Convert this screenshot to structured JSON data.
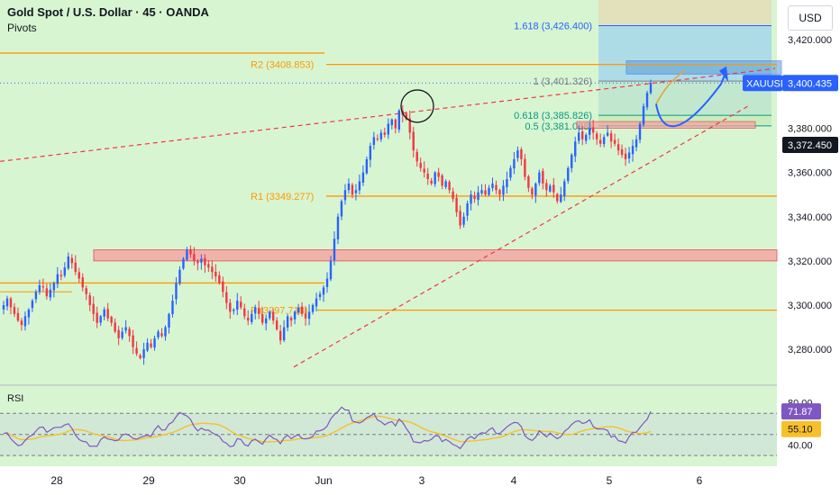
{
  "header": {
    "title": "Gold Spot / U.S. Dollar · 45 · OANDA",
    "indicator": "Pivots",
    "currency": "USD"
  },
  "colors": {
    "background": "#d8f5d1",
    "bull": "#2962ff",
    "bear": "#f23645",
    "pivot": "#ff9800",
    "fib_blue": "#2962ff",
    "fib_green": "#089981",
    "rsi_line": "#7e57c2",
    "rsi_ma": "#f7c02b",
    "zone_red": "#f7a3a3"
  },
  "chart_data": {
    "type": "candlestick",
    "symbol": "XAUUSD",
    "x_ticks": [
      "28",
      "29",
      "30",
      "Jun",
      "3",
      "4",
      "5",
      "6"
    ],
    "y_ticks": [
      "3,280.000",
      "3,300.000",
      "3,320.000",
      "3,340.000",
      "3,360.000",
      "3,380.000",
      "3,400.000",
      "3,420.000"
    ],
    "ylim": [
      3265,
      3438
    ],
    "price_labels": {
      "symbol": "XAUUSD",
      "last": "3,400.435",
      "marker": "3,372.450"
    },
    "pivot_levels": [
      {
        "label": "R2 (3408.853)",
        "value": 3408.853
      },
      {
        "label": "R1 (3349.277)",
        "value": 3349.277
      },
      {
        "label": "P (3297.718)",
        "value": 3297.718
      }
    ],
    "fib_levels": [
      {
        "label": "1.618 (3,426.400)",
        "value": 3426.4
      },
      {
        "label": "1 (3,401.326)",
        "value": 3401.326
      },
      {
        "label": "0.618 (3,385.826)",
        "value": 3385.826
      },
      {
        "label": "0.5 (3,381.038)",
        "value": 3381.038
      }
    ],
    "candles_close": [
      3300,
      3303,
      3299,
      3296,
      3293,
      3291,
      3295,
      3298,
      3302,
      3306,
      3309,
      3308,
      3304,
      3307,
      3310,
      3314,
      3313,
      3317,
      3322,
      3319,
      3315,
      3312,
      3308,
      3305,
      3300,
      3296,
      3292,
      3295,
      3298,
      3294,
      3292,
      3288,
      3285,
      3288,
      3290,
      3286,
      3281,
      3278,
      3276,
      3280,
      3283,
      3281,
      3285,
      3288,
      3286,
      3290,
      3296,
      3302,
      3310,
      3316,
      3321,
      3325,
      3323,
      3320,
      3319,
      3321,
      3318,
      3317,
      3315,
      3313,
      3310,
      3306,
      3301,
      3297,
      3298,
      3302,
      3299,
      3295,
      3293,
      3296,
      3299,
      3296,
      3292,
      3294,
      3297,
      3293,
      3289,
      3284,
      3290,
      3295,
      3293,
      3297,
      3299,
      3296,
      3294,
      3297,
      3300,
      3303,
      3305,
      3308,
      3312,
      3320,
      3330,
      3340,
      3347,
      3352,
      3355,
      3350,
      3352,
      3356,
      3360,
      3366,
      3372,
      3376,
      3375,
      3378,
      3377,
      3382,
      3384,
      3380,
      3388,
      3386,
      3384,
      3378,
      3370,
      3365,
      3362,
      3360,
      3357,
      3355,
      3360,
      3358,
      3354,
      3356,
      3352,
      3348,
      3342,
      3336,
      3340,
      3346,
      3350,
      3348,
      3351,
      3352,
      3350,
      3353,
      3355,
      3352,
      3350,
      3354,
      3357,
      3362,
      3366,
      3370,
      3366,
      3358,
      3353,
      3350,
      3355,
      3360,
      3355,
      3352,
      3354,
      3351,
      3347,
      3350,
      3356,
      3362,
      3368,
      3374,
      3378,
      3375,
      3377,
      3380,
      3378,
      3375,
      3373,
      3376,
      3378,
      3374,
      3373,
      3370,
      3368,
      3366,
      3369,
      3372,
      3375,
      3382,
      3390,
      3396,
      3400.435
    ],
    "x_series": [
      0,
      1
    ],
    "rsi": {
      "label": "RSI",
      "y_ticks": [
        "40.00",
        "80.00"
      ],
      "value": "71.87",
      "ma_value": "55.10",
      "ylim": [
        25,
        95
      ]
    }
  }
}
